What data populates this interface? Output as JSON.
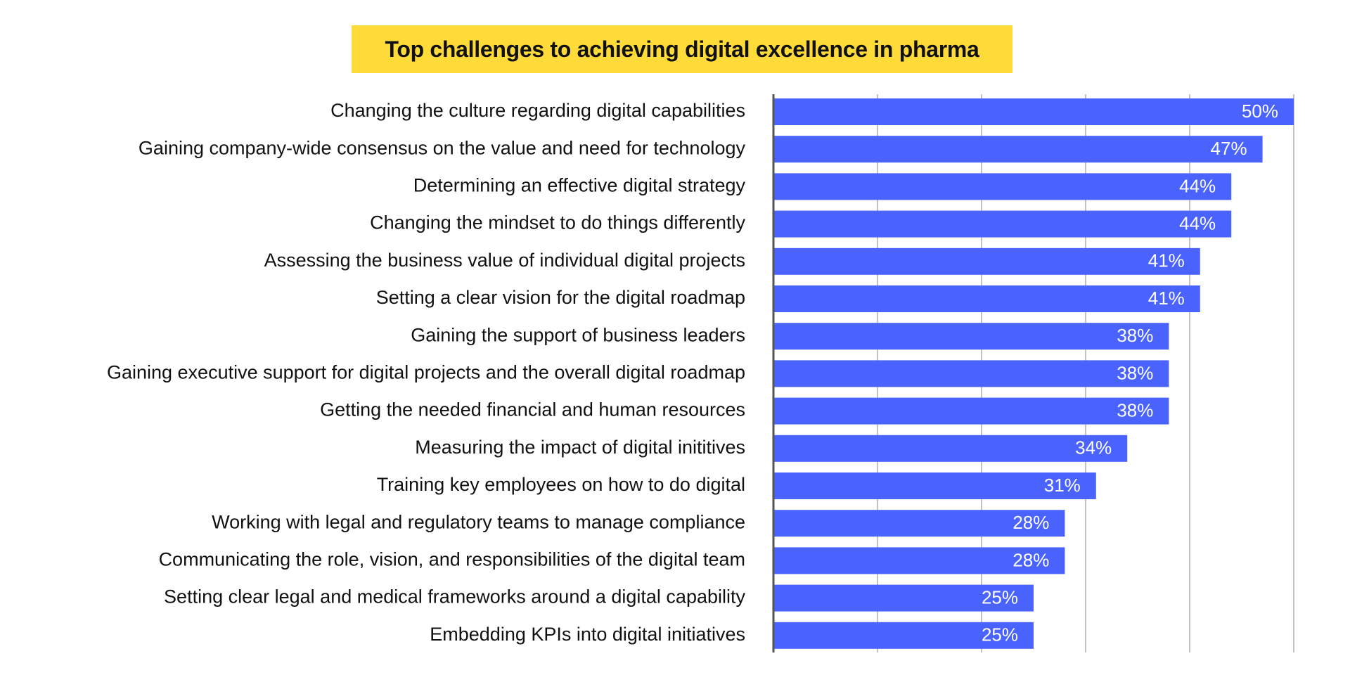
{
  "colors": {
    "title_background": "#ffdb3a",
    "bar": "#4a63ff",
    "grid": "#9a9a9a",
    "axis": "#555555",
    "label": "#111111",
    "value_label": "#ffffff"
  },
  "chart_data": {
    "type": "bar",
    "orientation": "horizontal",
    "title": "Top challenges to achieving digital excellence in pharma",
    "xlabel": "",
    "ylabel": "",
    "xlim": [
      0,
      50
    ],
    "grid": true,
    "gridline_values": [
      0,
      10,
      20,
      30,
      40,
      50
    ],
    "value_suffix": "%",
    "categories": [
      "Changing the culture regarding digital capabilities",
      "Gaining company-wide consensus on the value and need for technology",
      "Determining an effective digital strategy",
      "Changing the mindset to do things differently",
      "Assessing the business value of individual digital projects",
      "Setting a clear vision for the digital roadmap",
      "Gaining the support of business leaders",
      "Gaining executive support for digital projects and the overall digital roadmap",
      "Getting the needed financial and human resources",
      "Measuring the impact of digital inititives",
      "Training key employees on how to do digital",
      "Working with legal and regulatory teams to manage compliance",
      "Communicating the role, vision, and responsibilities of the digital team",
      "Setting clear legal and medical frameworks around a digital capability",
      "Embedding KPIs into digital initiatives"
    ],
    "values": [
      50,
      47,
      44,
      44,
      41,
      41,
      38,
      38,
      38,
      34,
      31,
      28,
      28,
      25,
      25
    ]
  }
}
